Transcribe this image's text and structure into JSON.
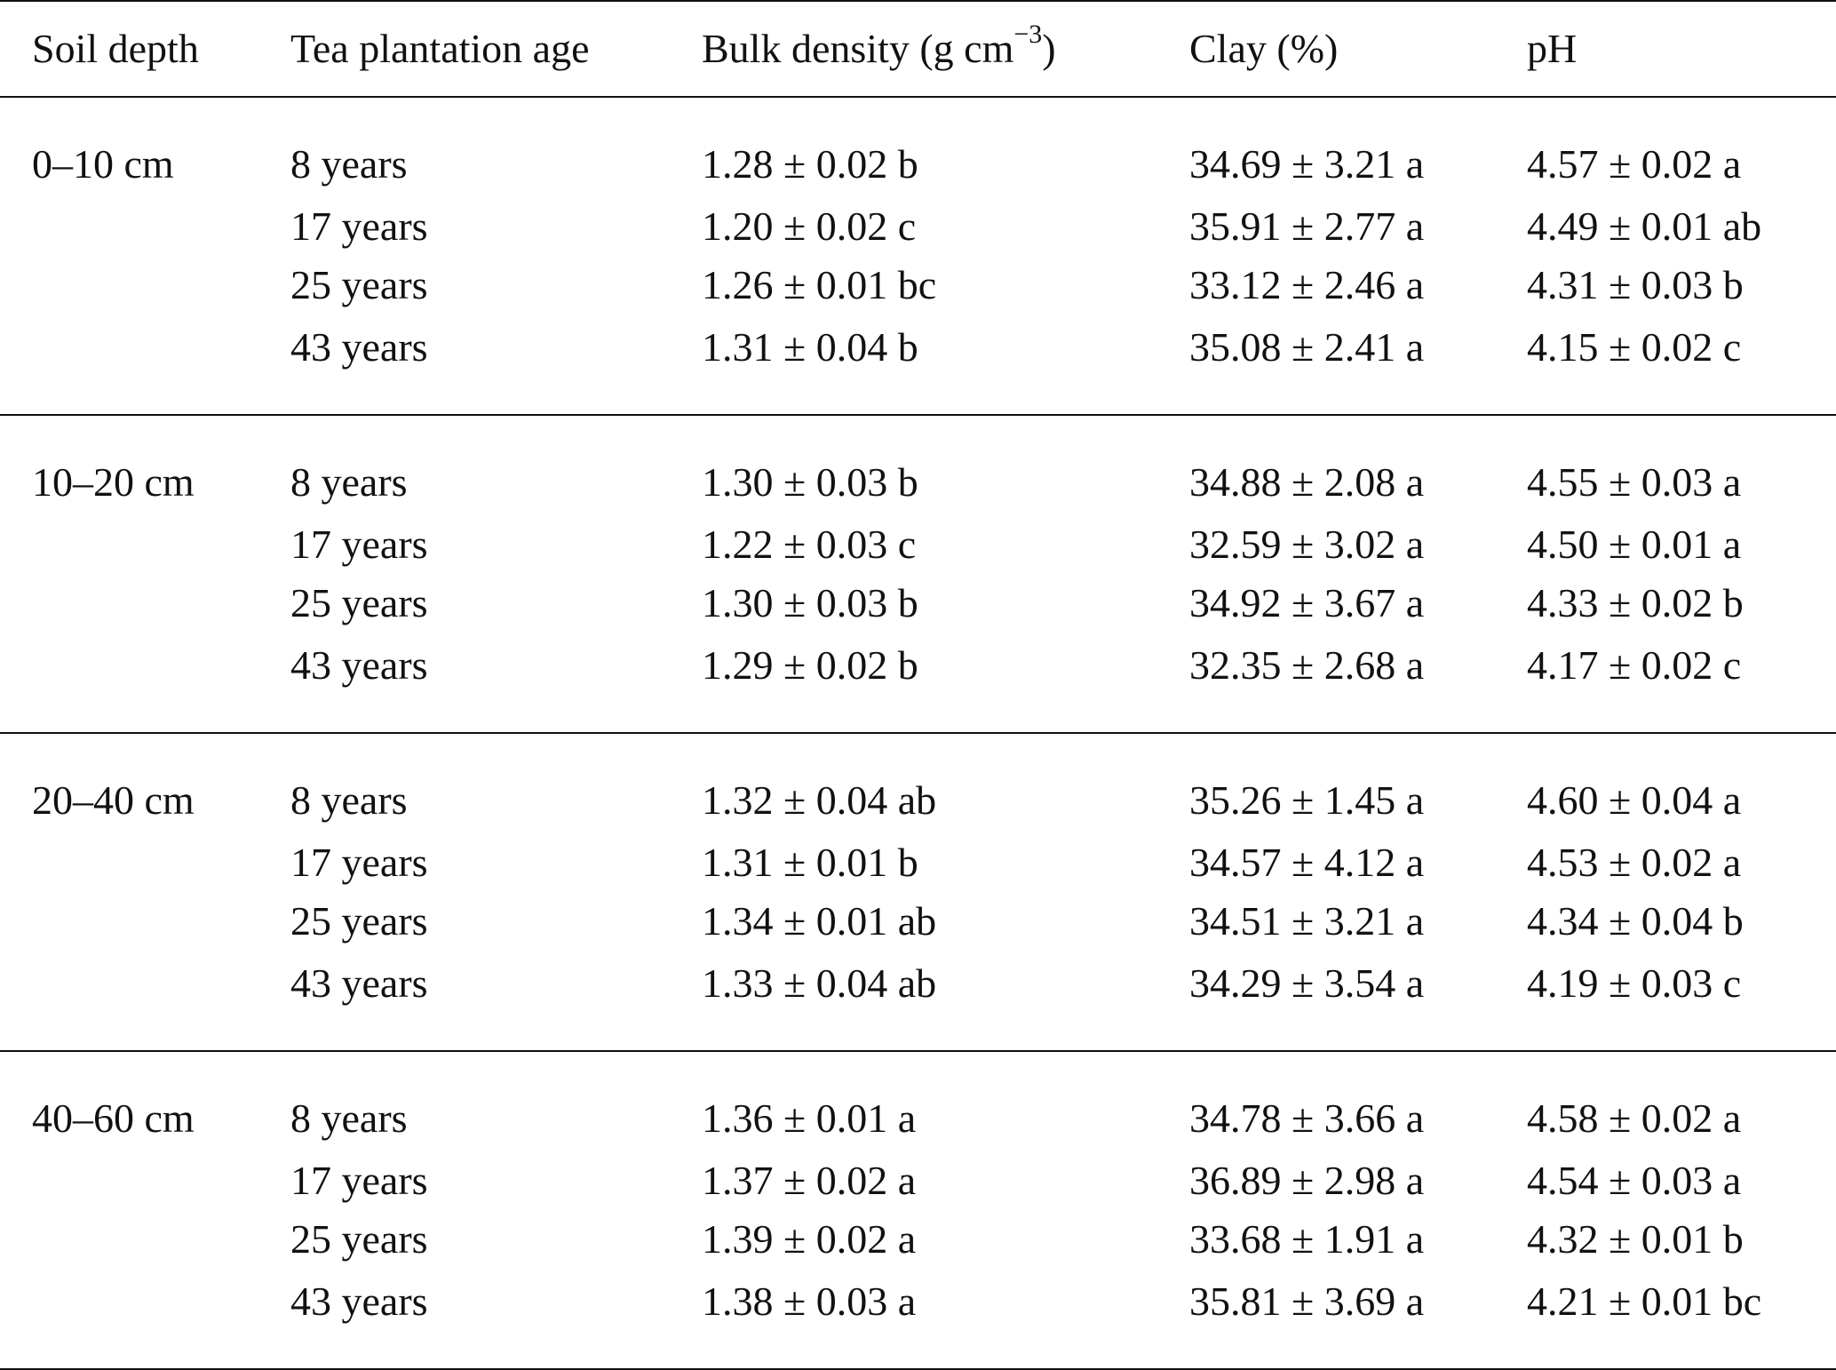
{
  "table": {
    "headers": {
      "soil_depth": "Soil depth",
      "tea_age": "Tea plantation age",
      "bulk_density": "Bulk density (g cm",
      "bulk_density_sup": "−3",
      "bulk_density_close": ")",
      "clay": "Clay (%)",
      "ph": "pH"
    },
    "groups": [
      {
        "depth": "0–10 cm",
        "rows": [
          {
            "age": "8 years",
            "bulk": "1.28 ± 0.02 b",
            "clay": "34.69 ± 3.21 a",
            "ph": "4.57 ± 0.02 a"
          },
          {
            "age": "17 years",
            "bulk": "1.20 ± 0.02 c",
            "clay": "35.91 ± 2.77 a",
            "ph": "4.49 ± 0.01 ab"
          },
          {
            "age": "25 years",
            "bulk": "1.26 ± 0.01 bc",
            "clay": "33.12 ± 2.46 a",
            "ph": "4.31 ± 0.03 b"
          },
          {
            "age": "43 years",
            "bulk": "1.31 ± 0.04 b",
            "clay": "35.08 ± 2.41 a",
            "ph": "4.15 ± 0.02 c"
          }
        ]
      },
      {
        "depth": "10–20 cm",
        "rows": [
          {
            "age": "8 years",
            "bulk": "1.30 ± 0.03 b",
            "clay": "34.88 ± 2.08 a",
            "ph": "4.55 ± 0.03 a"
          },
          {
            "age": "17 years",
            "bulk": "1.22 ± 0.03 c",
            "clay": "32.59 ± 3.02 a",
            "ph": "4.50 ± 0.01 a"
          },
          {
            "age": "25 years",
            "bulk": "1.30 ± 0.03 b",
            "clay": "34.92 ± 3.67 a",
            "ph": "4.33 ± 0.02 b"
          },
          {
            "age": "43 years",
            "bulk": "1.29 ± 0.02 b",
            "clay": "32.35 ± 2.68 a",
            "ph": "4.17 ± 0.02 c"
          }
        ]
      },
      {
        "depth": "20–40 cm",
        "rows": [
          {
            "age": "8 years",
            "bulk": "1.32 ± 0.04 ab",
            "clay": "35.26 ± 1.45 a",
            "ph": "4.60 ± 0.04 a"
          },
          {
            "age": "17 years",
            "bulk": "1.31 ± 0.01 b",
            "clay": "34.57 ± 4.12 a",
            "ph": "4.53 ± 0.02 a"
          },
          {
            "age": "25 years",
            "bulk": "1.34 ± 0.01 ab",
            "clay": "34.51 ± 3.21 a",
            "ph": "4.34 ± 0.04 b"
          },
          {
            "age": "43 years",
            "bulk": "1.33 ± 0.04 ab",
            "clay": "34.29 ± 3.54 a",
            "ph": "4.19 ± 0.03 c"
          }
        ]
      },
      {
        "depth": "40–60 cm",
        "rows": [
          {
            "age": "8 years",
            "bulk": "1.36 ± 0.01 a",
            "clay": "34.78 ± 3.66 a",
            "ph": "4.58 ± 0.02 a"
          },
          {
            "age": "17 years",
            "bulk": "1.37 ± 0.02 a",
            "clay": "36.89 ± 2.98 a",
            "ph": "4.54 ± 0.03 a"
          },
          {
            "age": "25 years",
            "bulk": "1.39 ± 0.02 a",
            "clay": "33.68 ± 1.91 a",
            "ph": "4.32 ± 0.01 b"
          },
          {
            "age": "43 years",
            "bulk": "1.38 ± 0.03 a",
            "clay": "35.81 ± 3.69 a",
            "ph": "4.21 ± 0.01 bc"
          }
        ]
      }
    ]
  }
}
